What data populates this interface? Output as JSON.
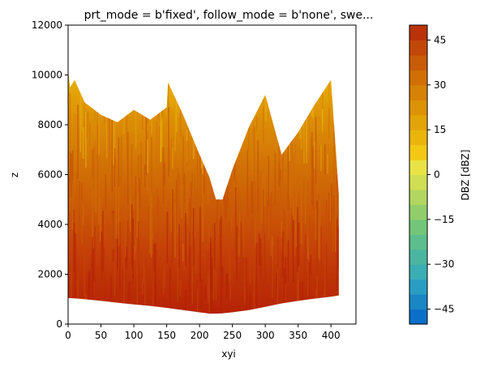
{
  "chart_data": {
    "type": "heatmap",
    "title": "prt_mode = b'fixed', follow_mode = b'none', swe...",
    "xlabel": "xyi",
    "ylabel": "z",
    "xlim": [
      0,
      438
    ],
    "ylim": [
      0,
      12000
    ],
    "x_ticks": [
      0,
      50,
      100,
      150,
      200,
      250,
      300,
      350,
      400
    ],
    "y_ticks": [
      0,
      2000,
      4000,
      6000,
      8000,
      10000,
      12000
    ],
    "grid": false,
    "colorbar": {
      "label": "DBZ [dBZ]",
      "range": [
        -50,
        50
      ],
      "step": 5,
      "ticks": [
        45,
        30,
        15,
        0,
        -15,
        -30,
        -45
      ],
      "tick_labels": [
        "45",
        "30",
        "15",
        "0",
        "−15",
        "−30",
        "−45"
      ],
      "colors": [
        "#0a6fc7",
        "#1a86c4",
        "#2a9ec2",
        "#3aaeb4",
        "#4bb6a0",
        "#5cbe8c",
        "#73c679",
        "#92cd6b",
        "#b2d65f",
        "#cfde52",
        "#e9e346",
        "#f2c814",
        "#e9b50b",
        "#e3a408",
        "#dc9306",
        "#d68206",
        "#cf6f06",
        "#c95c07",
        "#c24808",
        "#ba3207",
        "#b31e05"
      ]
    },
    "data_envelope": {
      "x": [
        0,
        3,
        10,
        25,
        50,
        75,
        100,
        125,
        150,
        152,
        175,
        200,
        215,
        225,
        235,
        250,
        275,
        300,
        325,
        350,
        375,
        400,
        412
      ],
      "z_bottom": [
        1050,
        1040,
        1030,
        1000,
        930,
        860,
        790,
        730,
        650,
        640,
        560,
        470,
        420,
        420,
        430,
        470,
        560,
        690,
        830,
        930,
        1020,
        1100,
        1150
      ],
      "z_top": [
        10200,
        9500,
        9800,
        8900,
        8400,
        8100,
        8600,
        8200,
        8700,
        9700,
        8400,
        6800,
        5900,
        5000,
        5000,
        6200,
        7900,
        9200,
        6800,
        7700,
        8800,
        9800,
        5200
      ]
    },
    "description_of_field": "Reflectivity mostly 15–45 dBZ (orange to dark red), strongest near the bottom, weaker (yellow, 0–15 dBZ) near the top edges."
  }
}
